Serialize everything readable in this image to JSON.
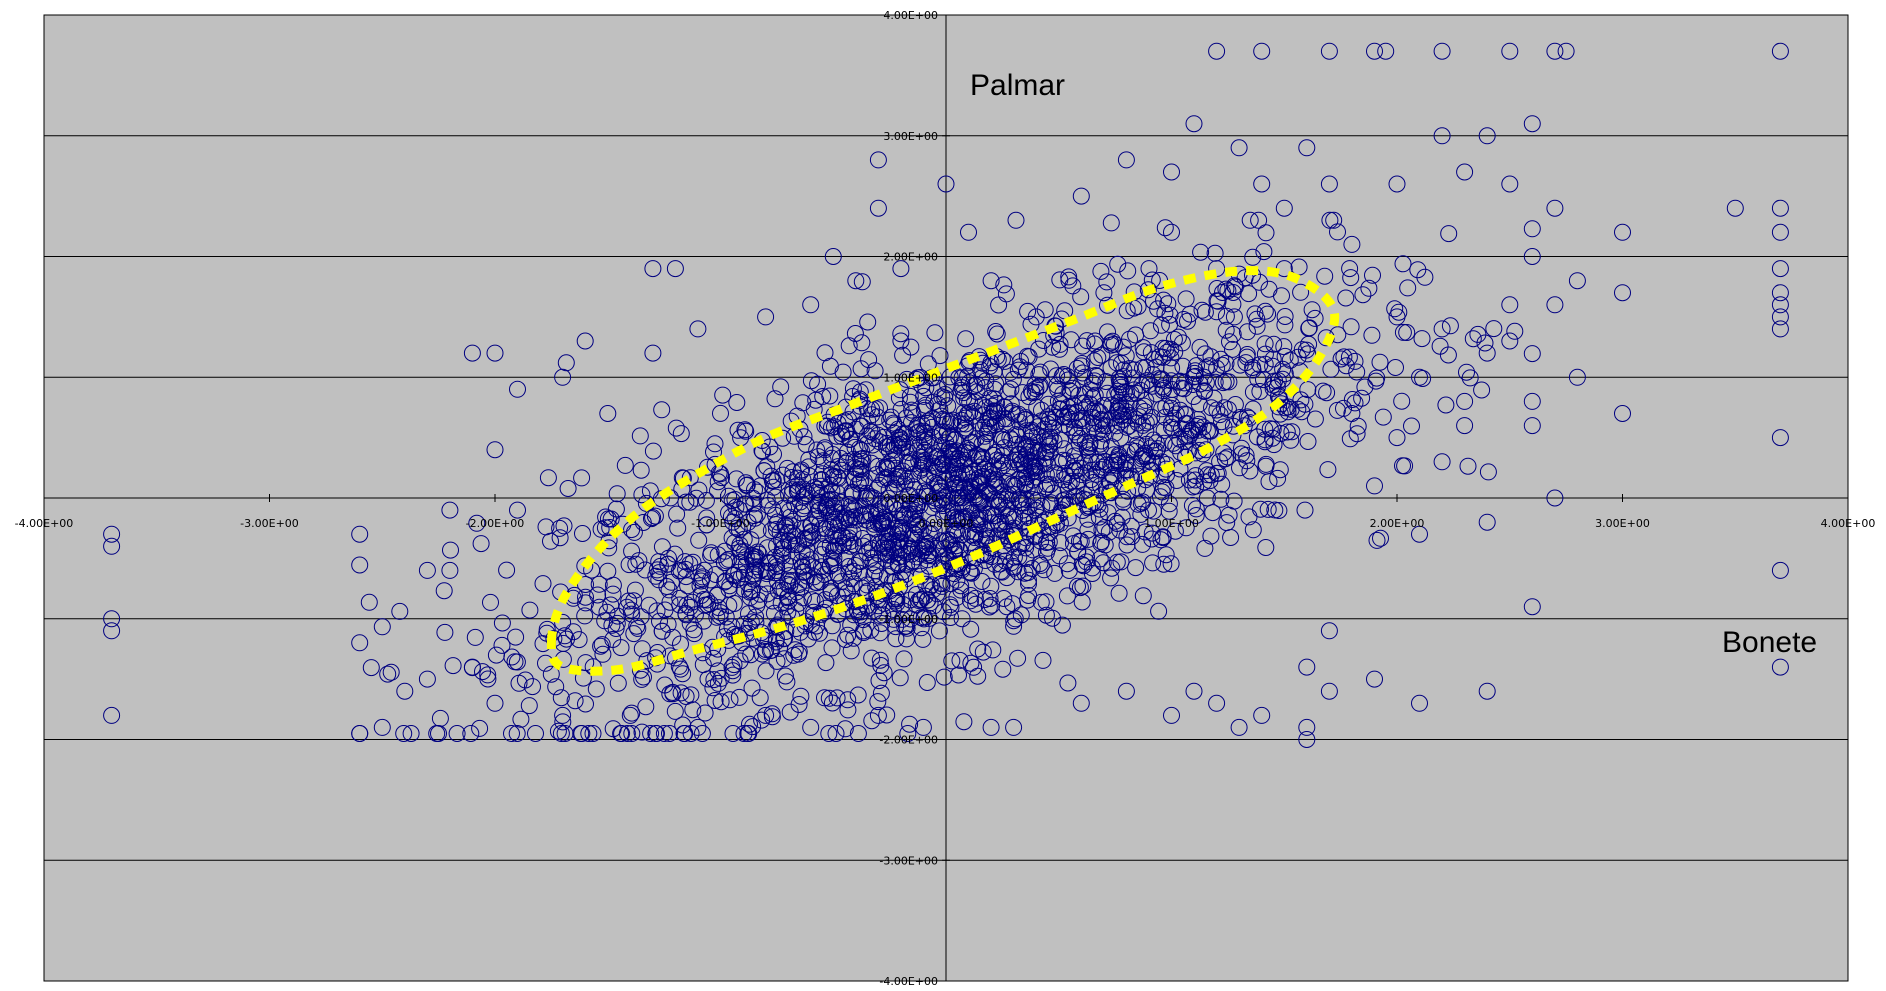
{
  "chart_data": {
    "type": "scatter",
    "title": "",
    "xlabel": "",
    "ylabel": "",
    "xlim": [
      -4,
      4
    ],
    "ylim": [
      -4,
      4
    ],
    "grid": "horizontal",
    "legend": "none",
    "x_tick_labels": [
      "-4.00E+00",
      "-3.00E+00",
      "-2.00E+00",
      "-1.00E+00",
      "0.00E+00",
      "1.00E+00",
      "2.00E+00",
      "3.00E+00",
      "4.00E+00"
    ],
    "y_tick_labels": [
      "4.00E+00",
      "3.00E+00",
      "2.00E+00",
      "1.00E+00",
      "0.00E+00",
      "-1.00E+00",
      "-2.00E+00",
      "-3.00E+00",
      "-4.00E+00"
    ],
    "annotations": [
      "Palmar",
      "Bonete"
    ],
    "colors": {
      "plot_background": "#c0c0c0",
      "marker": "#000080",
      "ellipse": "#ffff00",
      "gridline": "#000000"
    },
    "series": [
      {
        "marker": "open-circle",
        "points": [
          [
            -3.7,
            -0.3
          ],
          [
            -3.7,
            -0.4
          ],
          [
            -3.7,
            -1.0
          ],
          [
            -3.7,
            -1.1
          ],
          [
            -3.7,
            -1.8
          ],
          [
            -2.6,
            -0.3
          ],
          [
            -2.5,
            -1.9
          ],
          [
            -2.4,
            -1.6
          ],
          [
            -2.3,
            -1.5
          ],
          [
            -2.3,
            -0.6
          ],
          [
            -2.2,
            -0.1
          ],
          [
            -2.2,
            -0.6
          ],
          [
            -2.1,
            -1.4
          ],
          [
            -2.0,
            -1.7
          ],
          [
            -2.1,
            1.2
          ],
          [
            -2.0,
            1.2
          ],
          [
            -2.0,
            0.4
          ],
          [
            -1.9,
            -0.1
          ],
          [
            -1.9,
            0.9
          ],
          [
            -1.7,
            1.0
          ],
          [
            -1.6,
            1.3
          ],
          [
            -1.5,
            0.7
          ],
          [
            -1.3,
            1.9
          ],
          [
            -1.3,
            1.2
          ],
          [
            -1.1,
            1.4
          ],
          [
            -0.5,
            2.0
          ],
          [
            -0.3,
            2.8
          ],
          [
            -0.3,
            2.4
          ],
          [
            -0.2,
            1.9
          ],
          [
            0.0,
            2.6
          ],
          [
            0.1,
            2.2
          ],
          [
            0.6,
            2.5
          ],
          [
            0.8,
            2.8
          ],
          [
            1.0,
            2.7
          ],
          [
            1.0,
            2.2
          ],
          [
            1.1,
            3.1
          ],
          [
            1.3,
            2.9
          ],
          [
            1.4,
            2.6
          ],
          [
            1.5,
            2.4
          ],
          [
            1.6,
            2.9
          ],
          [
            1.7,
            2.6
          ],
          [
            1.8,
            2.1
          ],
          [
            2.0,
            2.6
          ],
          [
            2.2,
            3.0
          ],
          [
            2.3,
            2.7
          ],
          [
            2.4,
            3.0
          ],
          [
            2.5,
            2.6
          ],
          [
            2.6,
            3.1
          ],
          [
            2.7,
            2.4
          ],
          [
            1.2,
            3.7
          ],
          [
            1.4,
            3.7
          ],
          [
            1.7,
            3.7
          ],
          [
            1.9,
            3.7
          ],
          [
            1.95,
            3.7
          ],
          [
            2.2,
            3.7
          ],
          [
            2.5,
            3.7
          ],
          [
            2.7,
            3.7
          ],
          [
            2.75,
            3.7
          ],
          [
            3.7,
            3.7
          ],
          [
            2.6,
            2.0
          ],
          [
            2.7,
            1.6
          ],
          [
            2.8,
            1.8
          ],
          [
            3.0,
            1.7
          ],
          [
            3.0,
            2.2
          ],
          [
            3.5,
            2.4
          ],
          [
            3.7,
            2.4
          ],
          [
            3.7,
            2.2
          ],
          [
            3.7,
            1.9
          ],
          [
            3.7,
            1.7
          ],
          [
            3.7,
            1.6
          ],
          [
            3.7,
            1.5
          ],
          [
            3.7,
            1.4
          ],
          [
            2.8,
            1.0
          ],
          [
            3.0,
            0.7
          ],
          [
            2.6,
            0.8
          ],
          [
            2.6,
            0.6
          ],
          [
            2.7,
            0.0
          ],
          [
            3.7,
            0.5
          ],
          [
            3.7,
            -0.6
          ],
          [
            3.7,
            -1.4
          ],
          [
            2.6,
            -0.9
          ],
          [
            2.4,
            -0.2
          ],
          [
            2.4,
            -1.6
          ],
          [
            2.1,
            -0.3
          ],
          [
            1.9,
            -1.5
          ],
          [
            2.1,
            -1.7
          ],
          [
            1.7,
            -1.1
          ],
          [
            1.6,
            -1.4
          ],
          [
            1.7,
            -1.6
          ],
          [
            1.6,
            -1.9
          ],
          [
            1.6,
            -2.0
          ],
          [
            1.4,
            -1.8
          ],
          [
            1.3,
            -1.9
          ],
          [
            1.2,
            -1.7
          ],
          [
            1.1,
            -1.6
          ],
          [
            1.0,
            -1.8
          ],
          [
            0.8,
            -1.6
          ],
          [
            0.6,
            -1.7
          ],
          [
            0.3,
            -1.9
          ],
          [
            0.2,
            -1.9
          ],
          [
            -0.1,
            -1.9
          ],
          [
            -0.3,
            -1.8
          ],
          [
            -0.6,
            -1.9
          ],
          [
            -0.8,
            -1.8
          ],
          [
            -1.1,
            -1.9
          ],
          [
            -1.4,
            -1.8
          ],
          [
            -1.7,
            -1.8
          ],
          [
            -1.2,
            1.9
          ],
          [
            -1.0,
            0.2
          ],
          [
            -0.8,
            1.5
          ],
          [
            -0.6,
            1.6
          ],
          [
            -0.4,
            1.8
          ],
          [
            -0.2,
            1.3
          ],
          [
            0.2,
            1.8
          ],
          [
            0.4,
            1.5
          ],
          [
            0.7,
            1.7
          ],
          [
            0.9,
            1.9
          ],
          [
            1.2,
            1.9
          ],
          [
            1.5,
            1.9
          ],
          [
            2.0,
            1.5
          ],
          [
            2.2,
            1.4
          ],
          [
            2.4,
            1.2
          ],
          [
            2.1,
            1.0
          ],
          [
            2.3,
            0.8
          ],
          [
            2.0,
            0.5
          ],
          [
            2.2,
            0.3
          ],
          [
            1.8,
            0.7
          ],
          [
            1.9,
            0.1
          ],
          [
            2.3,
            0.6
          ],
          [
            2.5,
            1.3
          ],
          [
            2.5,
            1.6
          ]
        ]
      }
    ]
  }
}
